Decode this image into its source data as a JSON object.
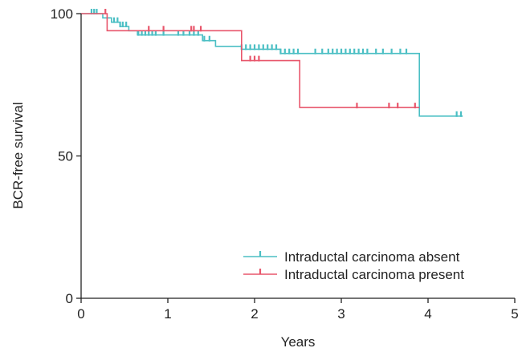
{
  "chart_data": {
    "type": "line",
    "subtype": "kaplan-meier step curves with censor marks",
    "xlabel": "Years",
    "ylabel": "BCR-free survival",
    "xlim": [
      0,
      5
    ],
    "ylim": [
      0,
      100
    ],
    "x_ticks": [
      0,
      1,
      2,
      3,
      4,
      5
    ],
    "y_ticks": [
      0,
      50,
      100
    ],
    "grid": false,
    "legend_position": "bottom-right",
    "series": [
      {
        "name": "Intraductal carcinoma absent",
        "color": "#4bbfc4",
        "steps": [
          [
            0,
            100
          ],
          [
            0.25,
            98.5
          ],
          [
            0.35,
            97
          ],
          [
            0.45,
            95.5
          ],
          [
            0.55,
            94
          ],
          [
            0.65,
            92.5
          ],
          [
            1.4,
            90.5
          ],
          [
            1.55,
            88.5
          ],
          [
            1.8,
            88.5
          ],
          [
            1.85,
            87.5
          ],
          [
            2.3,
            86
          ],
          [
            3.9,
            64
          ],
          [
            4.4,
            64
          ]
        ],
        "censors": [
          0.12,
          0.15,
          0.18,
          0.38,
          0.42,
          0.45,
          0.48,
          0.52,
          0.66,
          0.7,
          0.74,
          0.78,
          0.82,
          0.86,
          0.95,
          1.12,
          1.18,
          1.25,
          1.3,
          1.35,
          1.42,
          1.48,
          1.85,
          1.9,
          1.95,
          2.0,
          2.05,
          2.1,
          2.15,
          2.2,
          2.25,
          2.3,
          2.35,
          2.4,
          2.45,
          2.5,
          2.7,
          2.78,
          2.85,
          2.9,
          2.95,
          3.0,
          3.05,
          3.1,
          3.15,
          3.2,
          3.25,
          3.3,
          3.4,
          3.48,
          3.58,
          3.68,
          3.75,
          4.33,
          4.38
        ]
      },
      {
        "name": "Intraductal carcinoma present",
        "color": "#e8566b",
        "steps": [
          [
            0,
            100
          ],
          [
            0.3,
            94
          ],
          [
            1.85,
            83.5
          ],
          [
            2.52,
            67
          ],
          [
            3.9,
            67
          ]
        ],
        "censors": [
          0.28,
          0.78,
          0.95,
          1.27,
          1.3,
          1.38,
          1.95,
          2.0,
          2.05,
          3.18,
          3.55,
          3.65,
          3.85
        ]
      }
    ]
  }
}
